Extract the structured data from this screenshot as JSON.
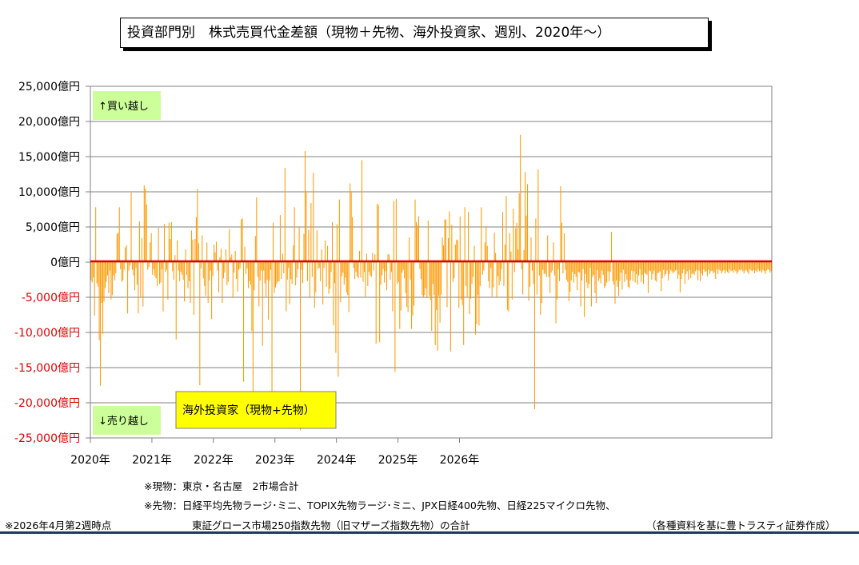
{
  "title": "投資部門別　株式売買代金差額（現物＋先物、海外投資家、週別、2020年～）",
  "annotations": {
    "buy": "↑買い越し",
    "sell": "↓売り越し",
    "legend": "海外投資家（現物+先物）"
  },
  "notes": {
    "spot": "※現物：東京・名古屋　2市場合計",
    "futures_line1": "※先物：日経平均先物ラージ･ミニ、TOPIX先物ラージ･ミニ、JPX日経400先物、日経225マイクロ先物、",
    "futures_line2": "東証グロース市場250指数先物（旧マザーズ指数先物）の合計",
    "as_of": "※2026年4月第2週時点",
    "source": "（各種資料を基に豊トラスティ証券作成）"
  },
  "colors": {
    "bar": "#ff9900",
    "zero_line": "#e00000",
    "negative_tick": "#e00000",
    "callout_bg": "#ccff99",
    "legend_bg": "#ffff00",
    "grid": "#808080",
    "rule": "#1f3864"
  },
  "chart_data": {
    "type": "bar",
    "title": "投資部門別　株式売買代金差額（現物＋先物、海外投資家、週別、2020年～）",
    "xlabel": "",
    "ylabel": "",
    "unit": "億円",
    "ylim": [
      -25000,
      25000
    ],
    "yticks": [
      {
        "value": 25000,
        "label": "25,000億円"
      },
      {
        "value": 20000,
        "label": "20,000億円"
      },
      {
        "value": 15000,
        "label": "15,000億円"
      },
      {
        "value": 10000,
        "label": "10,000億円"
      },
      {
        "value": 5000,
        "label": "5,000億円"
      },
      {
        "value": 0,
        "label": "0億円"
      },
      {
        "value": -5000,
        "label": "-5,000億円"
      },
      {
        "value": -10000,
        "label": "-10,000億円"
      },
      {
        "value": -15000,
        "label": "-15,000億円"
      },
      {
        "value": -20000,
        "label": "-20,000億円"
      },
      {
        "value": -25000,
        "label": "-25,000億円"
      }
    ],
    "xticks": [
      "2020年",
      "2021年",
      "2022年",
      "2023年",
      "2024年",
      "2025年",
      "2026年"
    ],
    "x_start": "2020年",
    "weeks_per_year": 52,
    "grid": true,
    "series": [
      {
        "values": [
          -2600,
          -2900,
          -2200,
          -7600,
          7800,
          -3000,
          -3500,
          -11100,
          -17600,
          -5800,
          -10200,
          -5600,
          -3700,
          -2800,
          -1900,
          -4400,
          -1200,
          -5300,
          -4700,
          -1900,
          -2600,
          -1600,
          4000,
          4200,
          7800,
          -1000,
          -2800,
          -2600,
          -1100,
          2100,
          2400,
          -7300,
          -1200,
          -500,
          9900,
          -1100,
          -1900,
          -4000,
          -800,
          -3200,
          -7300,
          5800,
          -5000,
          3400,
          -6300,
          10900,
          10400,
          8200,
          -1100,
          -700,
          2800,
          4100,
          -1800,
          -1000,
          -2000,
          -2300,
          -3400,
          4900,
          -3100,
          -2900,
          -1000,
          -7000,
          5400,
          -1400,
          -1100,
          -5300,
          5600,
          3300,
          5700,
          -1300,
          -2500,
          1000,
          -11000,
          3100,
          -1200,
          -2700,
          -1400,
          -1800,
          -2500,
          -5600,
          1800,
          -1800,
          -3700,
          -2700,
          -5800,
          4500,
          3200,
          -7500,
          3300,
          6400,
          10400,
          2700,
          -17500,
          -900,
          3800,
          -2300,
          -3400,
          -4800,
          2800,
          -5800,
          -2600,
          -1200,
          -8100,
          -2000,
          2500,
          1400,
          2900,
          -1200,
          -4300,
          700,
          1900,
          -5800,
          -2300,
          -1500,
          1800,
          -3300,
          -2800,
          4700,
          700,
          1100,
          -5100,
          -1500,
          1600,
          -2400,
          -4200,
          -1100,
          -900,
          6100,
          6200,
          -17000,
          2200,
          -1700,
          -900,
          -3700,
          -2700,
          -3200,
          -9800,
          -21700,
          -4000,
          3700,
          9200,
          -2100,
          -6300,
          -2600,
          -1200,
          -11900,
          -1200,
          -3000,
          -4900,
          -2500,
          -8200,
          -2600,
          -1100,
          -21700,
          5600,
          -4400,
          -3600,
          -3100,
          -2800,
          -2700,
          6700,
          -2400,
          1200,
          -1600,
          13400,
          -7000,
          -2500,
          -800,
          -6000,
          -2400,
          -3100,
          2400,
          7800,
          -3300,
          -2200,
          -1000,
          5000,
          -23900,
          -1100,
          -3000,
          4000,
          15800,
          10100,
          -2700,
          4600,
          -5100,
          8400,
          -2100,
          12700,
          -6500,
          -4300,
          4500,
          -1000,
          -800,
          -2700,
          1800,
          -6000,
          -800,
          3100,
          -3500,
          2300,
          -4500,
          -3800,
          -1400,
          5700,
          -9000,
          -3000,
          -12900,
          5400,
          -16300,
          8900,
          -5700,
          -2000,
          -1500,
          -3200,
          -2200,
          -4300,
          -4700,
          -7100,
          11200,
          10100,
          6400,
          -800,
          -2400,
          -1400,
          -2000,
          -2300,
          1600,
          -2200,
          14500,
          -2800,
          -1400,
          -4900,
          1200,
          -3400,
          -1400,
          -1900,
          -2100,
          1300,
          -1200,
          1100,
          -11600,
          8300,
          8100,
          -11400,
          -3200,
          -1900,
          -1000,
          -2900,
          -1300,
          -4000,
          1100,
          1100,
          -2500,
          -1400,
          -7000,
          8700,
          -15600,
          9000,
          -3100,
          -2800,
          -9500,
          -6900,
          -1500,
          -1100,
          -2300,
          -4400,
          -6400,
          -7100,
          3500,
          -2500,
          -9500,
          -7600,
          -6200,
          8900,
          5700,
          5200,
          6500,
          -1000,
          -2400,
          -4700,
          -5000,
          -4700,
          -3700,
          -5100,
          5900,
          -4800,
          -5400,
          -9800,
          -3100,
          -4700,
          -11800,
          -6800,
          -12600,
          -4800,
          -8600,
          -4600,
          3500,
          2400,
          6000,
          6100,
          -6400,
          3400,
          7200,
          -12700,
          5300,
          -2800,
          -2300,
          2500,
          3200,
          3100,
          -6500,
          6500,
          -5300,
          -6100,
          -11800,
          7800,
          -3400,
          -4900,
          7100,
          -7400,
          -5200,
          -3100,
          -2100,
          2300,
          -10300,
          -8800,
          -4700,
          -9000,
          -3400,
          7800,
          -1800,
          -1200,
          2800,
          5100,
          2300,
          -2700,
          -3700,
          -800,
          -4900,
          -3600,
          4200,
          1300,
          -5100,
          -2000,
          -3300,
          -2700,
          -1000,
          7100,
          -3400,
          2500,
          9400,
          -6800,
          -7000,
          4100,
          1500,
          -5300,
          7600,
          -1400,
          4800,
          5600,
          1800,
          9800,
          18100,
          -1000,
          -4600,
          1700,
          12800,
          6600,
          11100,
          -5500,
          -3500,
          3500,
          -1200,
          -3100,
          -20900,
          6200,
          -4600,
          13200,
          -1900,
          -7500,
          -5800,
          -1100,
          -1700,
          -1600,
          -2100,
          3800,
          -2100,
          -4400,
          -1500,
          -1200,
          2800,
          -1900,
          -8700,
          -5300,
          -1000,
          -2700,
          10800,
          5600,
          -1600,
          4100,
          -1100,
          -2500,
          -2800,
          -5500,
          -4200,
          -2600,
          -1400,
          -2900,
          -1700,
          -2100,
          -4000,
          -1400,
          -1500,
          -6300,
          -2600,
          -1000,
          -7800,
          -1700,
          -2900,
          -3700,
          -3100,
          -800,
          -6300,
          -2100,
          -1800,
          -4400,
          -5800,
          -1100,
          -2700,
          -2300,
          -3000,
          -1200,
          -1800,
          -3700,
          -3400,
          -2900,
          -1300,
          -2700,
          -1400,
          4300,
          -2700,
          -3200,
          -5900,
          -2600,
          -3500,
          -4800,
          -2700,
          -1500,
          -3900,
          -1100,
          -2800,
          -1700,
          -2500,
          -3500,
          -3700,
          -2600,
          -1200,
          -2700,
          -1300,
          -2900,
          -1700,
          -3200,
          -1900,
          -1000,
          -2800,
          -1800,
          -3100,
          -1500,
          -1700,
          -1800,
          -4400,
          -1200,
          -1300,
          -2500,
          -1700,
          -1200,
          -2600,
          -2800,
          -1600,
          -1500,
          -1300,
          -4100,
          -2300,
          -1100,
          -2000,
          -1700,
          -1200,
          -2600,
          -1700,
          -1100,
          -1300,
          -1600,
          -1400,
          -1200,
          -1100,
          -2400,
          -1800,
          -4300,
          -2400,
          -1600,
          -1000,
          -3100,
          -1700,
          -1300,
          -2500,
          -1100,
          -2300,
          -1700,
          -1600,
          -1800,
          -1300,
          -1100,
          -2600,
          -1200,
          -2700,
          -1600,
          -1900,
          -1000,
          -1400,
          -1300,
          -2000,
          -1100,
          -1700,
          -1300,
          -1200,
          -1600,
          -1400,
          -2400,
          -1000,
          -1700,
          -1100,
          -1200,
          -1600,
          -1300,
          -1100,
          -1600,
          -1200,
          -1400,
          -1600,
          -1000,
          -1300,
          -1200,
          -1500,
          -1100,
          -1300,
          -1700,
          -1400,
          -1100,
          -1200,
          -1000,
          -1300,
          -1600,
          -1200,
          -1100,
          -1400,
          -1700,
          -1000,
          -1200,
          -1300,
          -1100,
          -1600,
          -1200,
          -1400,
          -1000,
          -1300,
          -1200,
          -1500,
          -1100,
          -1300,
          -1700,
          -1200,
          -1000,
          -1100,
          -1500,
          -1300
        ]
      }
    ]
  }
}
